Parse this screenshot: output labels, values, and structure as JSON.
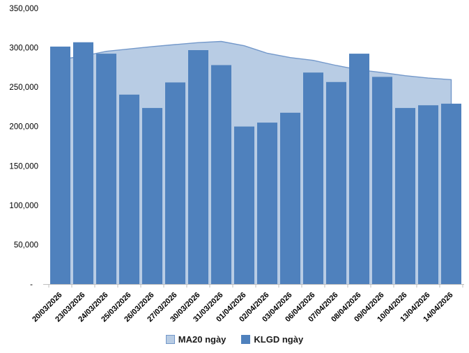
{
  "chart_data": {
    "type": "bar",
    "subtype": "bar-with-area-overlay",
    "title": "",
    "categories": [
      "20/03/2026",
      "23/03/2026",
      "24/03/2026",
      "25/03/2026",
      "26/03/2026",
      "27/03/2026",
      "30/03/2026",
      "31/03/2026",
      "01/04/2026",
      "02/04/2026",
      "03/04/2026",
      "06/04/2026",
      "07/04/2026",
      "08/04/2026",
      "09/04/2026",
      "10/04/2026",
      "13/04/2026",
      "14/04/2026"
    ],
    "series": [
      {
        "name": "MA20 ngày",
        "type": "area",
        "values": [
          285000,
          289500,
          295500,
          298500,
          301500,
          304000,
          306500,
          308000,
          302500,
          293000,
          287500,
          284000,
          277500,
          272000,
          268500,
          264500,
          261500,
          259500
        ]
      },
      {
        "name": "KLGD ngày",
        "type": "column",
        "values": [
          301500,
          307000,
          292500,
          240500,
          223500,
          256000,
          297000,
          278000,
          200000,
          205000,
          217500,
          268500,
          256500,
          292500,
          263000,
          223500,
          227000,
          229000
        ]
      }
    ],
    "xlabel": "",
    "ylabel": "",
    "ylim": [
      0,
      350000
    ],
    "y_tick_interval": 50000,
    "y_tick_labels": [
      "-",
      "50,000",
      "100,000",
      "150,000",
      "200,000",
      "250,000",
      "300,000",
      "350,000"
    ],
    "grid": false,
    "legend_position": "bottom"
  },
  "colors": {
    "bar_fill": "#4F81BD",
    "area_fill": "#B8CCE4",
    "area_line": "#7398CA",
    "axis_line": "#BFBFBF",
    "tick_mark": "#BFBFBF",
    "axis_text": "#000000"
  }
}
